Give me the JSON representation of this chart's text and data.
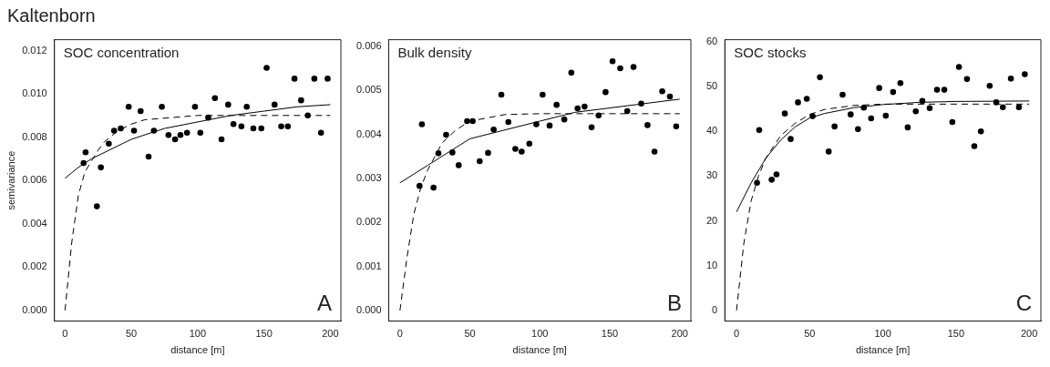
{
  "chart_data": [
    {
      "type": "scatter",
      "title": "SOC concentration",
      "xlabel": "distance [m]",
      "ylabel": "semivariance",
      "annotations": [
        "Kaltenborn",
        "A"
      ],
      "xlim": [
        -8,
        208
      ],
      "xticks": [
        0,
        50,
        100,
        150,
        200
      ],
      "ylim": [
        -0.0005,
        0.0125
      ],
      "yticks": [
        {
          "value": 0,
          "label": "0.000"
        },
        {
          "value": 0.002,
          "label": "0.002"
        },
        {
          "value": 0.004,
          "label": "0.004"
        },
        {
          "value": 0.006,
          "label": "0.006"
        },
        {
          "value": 0.008,
          "label": "0.008"
        },
        {
          "value": 0.01,
          "label": "0.010"
        },
        {
          "value": 0.012,
          "label": "0.012"
        }
      ],
      "grid": false,
      "legend": false,
      "marker": "circle",
      "series": [
        {
          "type": "scatter",
          "color": "#000000",
          "x": [
            14,
            15.5,
            24,
            27,
            33,
            37,
            42,
            48,
            52,
            57,
            63,
            67,
            73,
            78,
            83,
            87,
            92,
            98,
            102,
            108,
            113,
            118,
            123,
            127,
            133,
            137,
            142,
            148,
            152,
            158,
            163,
            168,
            173,
            178,
            183,
            188,
            193,
            198
          ],
          "values": [
            0.0068,
            0.0073,
            0.0048,
            0.0066,
            0.0077,
            0.0083,
            0.0084,
            0.0094,
            0.0083,
            0.0092,
            0.0071,
            0.0083,
            0.0094,
            0.0081,
            0.0079,
            0.0081,
            0.0082,
            0.0094,
            0.0082,
            0.0089,
            0.0098,
            0.0079,
            0.0095,
            0.0086,
            0.0085,
            0.0094,
            0.0084,
            0.0084,
            0.0112,
            0.0095,
            0.0085,
            0.0085,
            0.0107,
            0.0097,
            0.009,
            0.0107,
            0.0082,
            0.0107
          ]
        },
        {
          "type": "line",
          "color": "#000000",
          "line_style": "solid",
          "marker": "none",
          "x": [
            0,
            10,
            20,
            30,
            40,
            50,
            75,
            100,
            125,
            150,
            175,
            200
          ],
          "values": [
            0.0061,
            0.0066,
            0.007,
            0.0073,
            0.0076,
            0.0079,
            0.0084,
            0.0087,
            0.009,
            0.0092,
            0.0094,
            0.0095
          ]
        },
        {
          "type": "line",
          "color": "#000000",
          "line_style": "dashed",
          "marker": "none",
          "x": [
            0,
            5,
            10,
            15,
            20,
            25,
            30,
            40,
            50,
            60,
            80,
            100,
            150,
            200
          ],
          "values": [
            0,
            0.0031,
            0.0053,
            0.0064,
            0.0069,
            0.0074,
            0.0078,
            0.0083,
            0.0086,
            0.0088,
            0.0089,
            0.009,
            0.009,
            0.009
          ]
        }
      ]
    },
    {
      "type": "scatter",
      "title": "Bulk density",
      "xlabel": "distance [m]",
      "annotations": [
        "B"
      ],
      "xlim": [
        -8,
        208
      ],
      "xticks": [
        0,
        50,
        100,
        150,
        200
      ],
      "ylim": [
        -0.00024,
        0.00615
      ],
      "yticks": [
        {
          "value": 0,
          "label": "0.000"
        },
        {
          "value": 0.001,
          "label": "0.001"
        },
        {
          "value": 0.002,
          "label": "0.002"
        },
        {
          "value": 0.003,
          "label": "0.003"
        },
        {
          "value": 0.004,
          "label": "0.004"
        },
        {
          "value": 0.005,
          "label": "0.005"
        },
        {
          "value": 0.006,
          "label": "0.006"
        }
      ],
      "grid": false,
      "legend": false,
      "marker": "circle",
      "series": [
        {
          "type": "scatter",
          "color": "#000000",
          "x": [
            14,
            15.7,
            24,
            27.5,
            33,
            37.5,
            42,
            48,
            52,
            57,
            63,
            67,
            72.5,
            77.5,
            82.5,
            87,
            92.5,
            97.5,
            102,
            107,
            112,
            117.5,
            122.5,
            127,
            132,
            137,
            142,
            147,
            152,
            157.5,
            162.5,
            167,
            172.5,
            177,
            182,
            187.5,
            193,
            197.5
          ],
          "values": [
            0.00283,
            0.00423,
            0.00279,
            0.00357,
            0.00399,
            0.00359,
            0.0033,
            0.0043,
            0.0043,
            0.00339,
            0.00358,
            0.00411,
            0.0049,
            0.00428,
            0.00367,
            0.00361,
            0.00379,
            0.00423,
            0.0049,
            0.0042,
            0.00467,
            0.00434,
            0.0054,
            0.00459,
            0.00463,
            0.00416,
            0.00443,
            0.00496,
            0.00566,
            0.0055,
            0.00453,
            0.00553,
            0.0047,
            0.00421,
            0.00361,
            0.00498,
            0.00486,
            0.00418
          ]
        },
        {
          "type": "line",
          "color": "#000000",
          "line_style": "solid",
          "marker": "none",
          "x": [
            0,
            10,
            20,
            30,
            40,
            50,
            75,
            100,
            125,
            150,
            175,
            200
          ],
          "values": [
            0.0029,
            0.0031,
            0.0033,
            0.0035,
            0.0037,
            0.0039,
            0.0041,
            0.0043,
            0.0045,
            0.0046,
            0.0047,
            0.0048
          ]
        },
        {
          "type": "line",
          "color": "#000000",
          "line_style": "dashed",
          "marker": "none",
          "x": [
            0,
            5,
            10,
            15,
            20,
            30,
            40,
            50,
            75,
            100,
            150,
            200
          ],
          "values": [
            0,
            0.0012,
            0.0022,
            0.0028,
            0.0032,
            0.0038,
            0.0041,
            0.0043,
            0.00445,
            0.00447,
            0.00447,
            0.00447
          ]
        }
      ]
    },
    {
      "type": "scatter",
      "title": "SOC stocks",
      "xlabel": "distance [m]",
      "annotations": [
        "C"
      ],
      "xlim": [
        -8,
        208
      ],
      "xticks": [
        0,
        50,
        100,
        150,
        200
      ],
      "ylim": [
        -2.4,
        60.5
      ],
      "yticks": [
        0,
        10,
        20,
        30,
        40,
        50,
        60
      ],
      "grid": false,
      "legend": false,
      "marker": "circle",
      "series": [
        {
          "type": "scatter",
          "color": "#000000",
          "x": [
            14,
            15.5,
            24,
            27.3,
            33,
            37,
            42,
            48,
            52,
            57,
            63,
            67,
            72.5,
            78,
            83,
            87,
            92,
            97.5,
            102,
            107,
            112,
            117,
            122.5,
            127,
            132,
            137,
            142,
            147.5,
            152,
            157.5,
            162.5,
            167,
            173,
            177.5,
            182,
            187.5,
            193,
            197
          ],
          "values": [
            28.5,
            40.3,
            29.2,
            30.4,
            44,
            38.3,
            46.5,
            47.3,
            43.4,
            52.1,
            35.5,
            41.1,
            48.2,
            43.8,
            40.5,
            45.3,
            42.9,
            49.7,
            43.5,
            48.8,
            50.8,
            40.9,
            44.5,
            46.8,
            45.2,
            49.3,
            49.3,
            42.1,
            54.4,
            51.7,
            36.7,
            40,
            50.2,
            46.5,
            45.4,
            51.8,
            45.4,
            52.8
          ]
        },
        {
          "type": "line",
          "color": "#000000",
          "line_style": "solid",
          "marker": "none",
          "x": [
            0,
            10,
            20,
            30,
            40,
            50,
            60,
            80,
            100,
            125,
            150,
            200
          ],
          "values": [
            22,
            28.5,
            34,
            38,
            41,
            43,
            44,
            45.3,
            46,
            46.5,
            46.7,
            46.8
          ]
        },
        {
          "type": "line",
          "color": "#000000",
          "line_style": "dashed",
          "marker": "none",
          "x": [
            0,
            5,
            10,
            15,
            20,
            30,
            40,
            50,
            60,
            80,
            100,
            200
          ],
          "values": [
            0,
            15,
            24.5,
            30,
            34,
            39,
            41.8,
            43.8,
            44.9,
            45.8,
            46.1,
            46.1
          ]
        }
      ]
    }
  ]
}
